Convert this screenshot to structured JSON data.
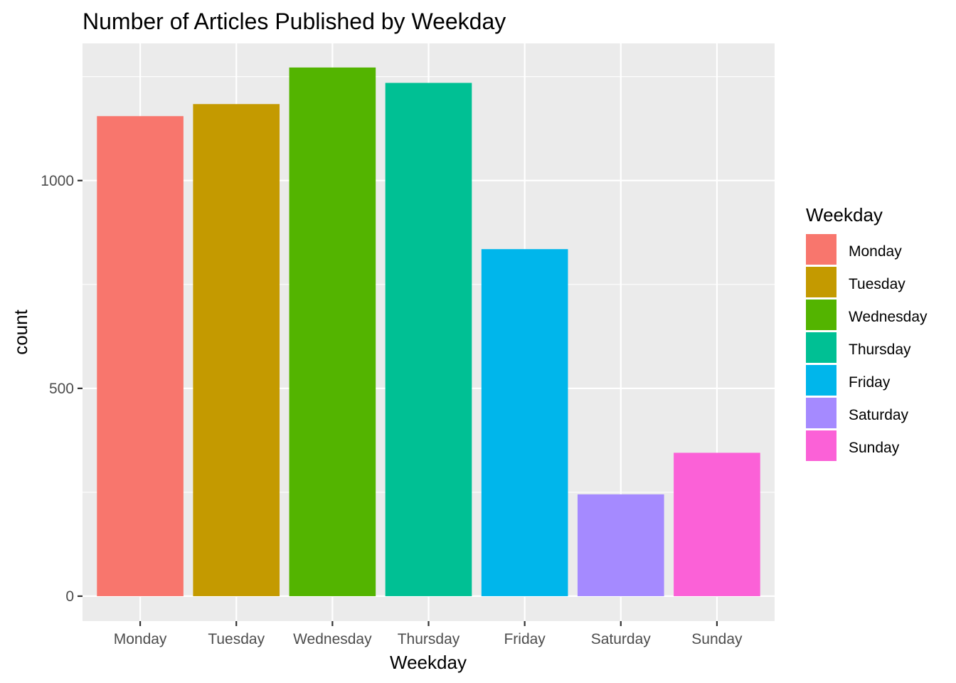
{
  "chart_data": {
    "type": "bar",
    "title": "Number of Articles Published by Weekday",
    "xlabel": "Weekday",
    "ylabel": "count",
    "categories": [
      "Monday",
      "Tuesday",
      "Wednesday",
      "Thursday",
      "Friday",
      "Saturday",
      "Sunday"
    ],
    "values": [
      1155,
      1184,
      1272,
      1235,
      835,
      245,
      345
    ],
    "colors": [
      "#F8766D",
      "#C49A00",
      "#53B400",
      "#00C094",
      "#00B6EB",
      "#A58AFF",
      "#FB61D7"
    ],
    "yticks": [
      0,
      500,
      1000
    ],
    "ytick_labels": [
      "0",
      "500",
      "1000"
    ],
    "ylim": [
      -60,
      1330
    ],
    "grid": true,
    "legend": {
      "title": "Weekday",
      "placement": "right",
      "entries": [
        "Monday",
        "Tuesday",
        "Wednesday",
        "Thursday",
        "Friday",
        "Saturday",
        "Sunday"
      ]
    },
    "panel_background": "#EBEBEB",
    "grid_color": "#FFFFFF"
  }
}
